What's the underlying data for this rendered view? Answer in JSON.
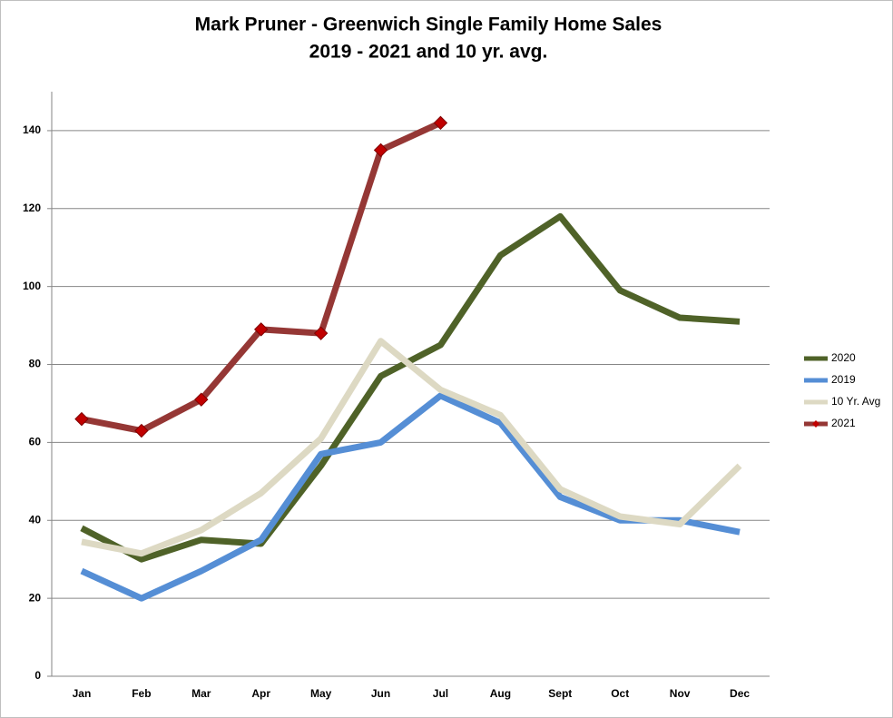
{
  "chart_data": {
    "type": "line",
    "title": "Mark Pruner - Greenwich Single Family Home Sales",
    "subtitle": "2019 - 2021 and 10 yr. avg.",
    "categories": [
      "Jan",
      "Feb",
      "Mar",
      "Apr",
      "May",
      "Jun",
      "Jul",
      "Aug",
      "Sept",
      "Oct",
      "Nov",
      "Dec"
    ],
    "series": [
      {
        "name": "2020",
        "color": "#4f6228",
        "values": [
          38,
          30,
          35,
          34,
          54,
          77,
          85,
          108,
          118,
          99,
          92,
          91
        ]
      },
      {
        "name": "2019",
        "color": "#558ed5",
        "values": [
          27,
          20,
          27,
          35,
          57,
          60,
          72,
          65,
          46,
          40,
          40,
          37
        ]
      },
      {
        "name": "10 Yr. Avg",
        "color": "#ddd9c3",
        "values": [
          34.5,
          31.5,
          37.5,
          47,
          61,
          86,
          73.5,
          67,
          48,
          41,
          39,
          54
        ]
      },
      {
        "name": "2021",
        "color": "#953735",
        "marker_color": "#c00000",
        "values": [
          66,
          63,
          71,
          89,
          88,
          135,
          142,
          null,
          null,
          null,
          null,
          null
        ]
      }
    ],
    "ylim": [
      0,
      150
    ],
    "yticks": [
      0,
      20,
      40,
      60,
      80,
      100,
      120,
      140
    ],
    "grid": true,
    "legend": "right"
  }
}
